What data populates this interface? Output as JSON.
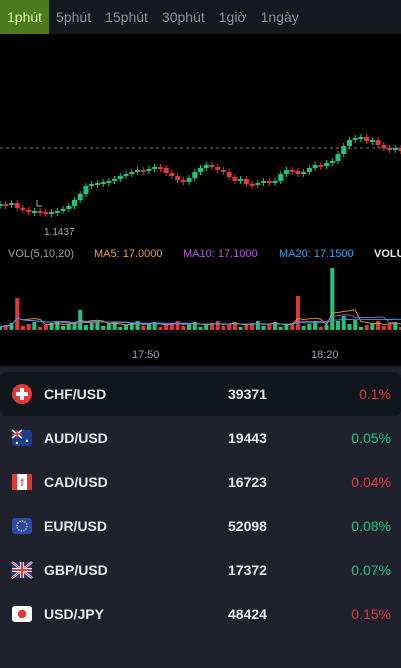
{
  "timeframes": [
    "1phút",
    "5phút",
    "15phút",
    "30phút",
    "1giờ",
    "1ngày"
  ],
  "active_timeframe": "1phút",
  "chart": {
    "low_label": "1.1437",
    "vol_label": "VOL(5,10,20)",
    "ma5": "MA5: 17.0000",
    "ma10": "MA10: 17.1000",
    "ma20": "MA20: 17.1500",
    "volu": "VOLU",
    "time_ticks": [
      "17:50",
      "18:20"
    ],
    "colors": {
      "up": "#22c37a",
      "down": "#e0373b",
      "ma5": "#f0a030",
      "ma10": "#b05fd0",
      "ma20": "#3aa0e8"
    }
  },
  "pairs": [
    {
      "name": "CHF/USD",
      "price": "39371",
      "change": "0.1%",
      "dir": "down",
      "flag": "ch-flag-icon"
    },
    {
      "name": "AUD/USD",
      "price": "19443",
      "change": "0.05%",
      "dir": "up",
      "flag": "au-flag-icon"
    },
    {
      "name": "CAD/USD",
      "price": "16723",
      "change": "0.04%",
      "dir": "down",
      "flag": "ca-flag-icon"
    },
    {
      "name": "EUR/USD",
      "price": "52098",
      "change": "0.08%",
      "dir": "up",
      "flag": "eu-flag-icon"
    },
    {
      "name": "GBP/USD",
      "price": "17372",
      "change": "0.07%",
      "dir": "up",
      "flag": "gb-flag-icon"
    },
    {
      "name": "USD/JPY",
      "price": "48424",
      "change": "0.15%",
      "dir": "down",
      "flag": "jp-flag-icon"
    }
  ]
}
